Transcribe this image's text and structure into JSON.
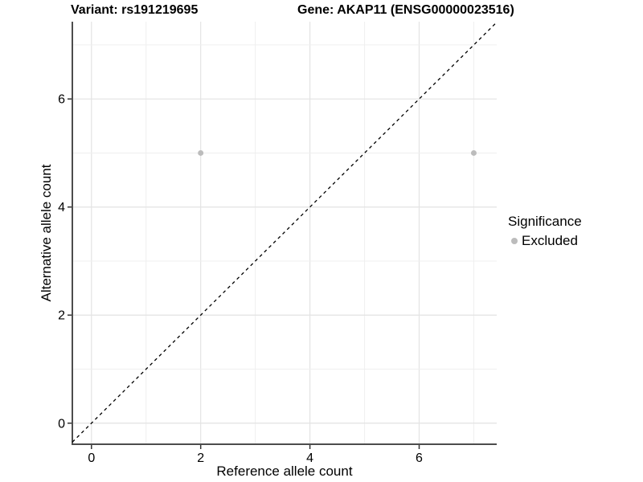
{
  "titles": {
    "variant": "Variant: rs191219695",
    "gene": "Gene: AKAP11 (ENSG00000023516)"
  },
  "chart_data": {
    "type": "scatter",
    "xlabel": "Reference allele count",
    "ylabel": "Alternative allele count",
    "xlim": [
      -0.35,
      7.42
    ],
    "ylim": [
      -0.39,
      7.43
    ],
    "xticks": [
      0,
      2,
      4,
      6
    ],
    "yticks": [
      0,
      2,
      4,
      6
    ],
    "grid": {
      "x": [
        0,
        1,
        2,
        3,
        4,
        5,
        6,
        7
      ],
      "y": [
        0,
        1,
        2,
        3,
        4,
        5,
        6,
        7
      ]
    },
    "series": [
      {
        "name": "Excluded",
        "color": "#bcbcbc",
        "points": [
          [
            2,
            5
          ],
          [
            7,
            5
          ]
        ]
      }
    ],
    "reference_line": {
      "kind": "identity",
      "style": "dashed",
      "color": "#000000"
    },
    "legend": {
      "position": "right",
      "title": "Significance",
      "entries": [
        {
          "label": "Excluded",
          "color": "#bcbcbc"
        }
      ]
    },
    "style": {
      "grid_major": "#e3e3e3",
      "grid_minor": "#efefef",
      "axis_line": "#4d4d4d",
      "tick": "#333333",
      "text": "#000000",
      "point_radius": 3.5
    }
  }
}
